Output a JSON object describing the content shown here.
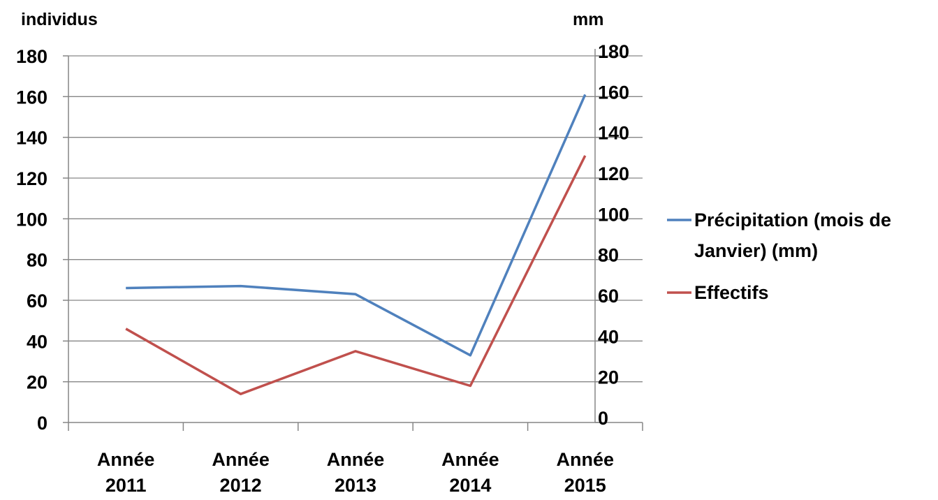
{
  "chart_data": {
    "type": "line",
    "categories": [
      "Année 2011",
      "Année 2012",
      "Année 2013",
      "Année 2014",
      "Année 2015"
    ],
    "category_lines": [
      [
        "Année",
        "2011"
      ],
      [
        "Année",
        "2012"
      ],
      [
        "Année",
        "2013"
      ],
      [
        "Année",
        "2014"
      ],
      [
        "Année",
        "2015"
      ]
    ],
    "y_left": {
      "label": "individus",
      "ylim": [
        0,
        180
      ],
      "ticks": [
        0,
        20,
        40,
        60,
        80,
        100,
        120,
        140,
        160,
        180
      ]
    },
    "y_right": {
      "label": "mm",
      "ylim": [
        0,
        180
      ],
      "ticks": [
        0,
        20,
        40,
        60,
        80,
        100,
        120,
        140,
        160,
        180
      ]
    },
    "series": [
      {
        "name": "Précipitation (mois de Janvier) (mm)",
        "name_lines": [
          "Précipitation (mois de",
          "Janvier) (mm)"
        ],
        "axis": "right",
        "color": "#4f81bd",
        "values": [
          66,
          67,
          63,
          33,
          161
        ]
      },
      {
        "name": "Effectifs",
        "name_lines": [
          "Effectifs"
        ],
        "axis": "left",
        "color": "#c0504d",
        "values": [
          46,
          14,
          35,
          18,
          131
        ]
      }
    ],
    "grid": true,
    "legend_position": "right"
  }
}
